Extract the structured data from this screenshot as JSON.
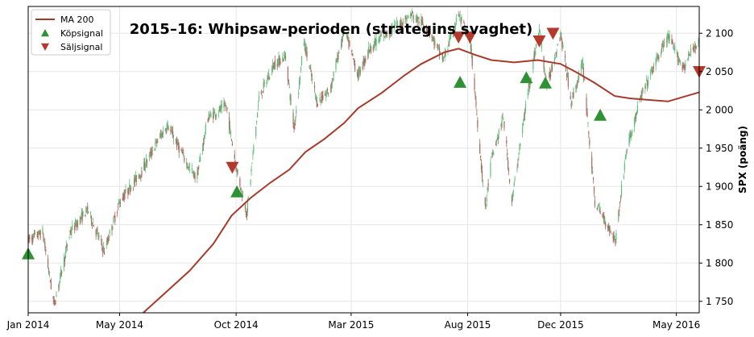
{
  "chart_data": {
    "type": "candlestick",
    "title": "2015–16: Whipsaw-perioden  (strategins svaghet)",
    "ylabel": "SPX  (poäng)",
    "xlabel": "",
    "xlim": [
      "2014-01-01",
      "2016-05-31"
    ],
    "ylim": [
      1735,
      2135
    ],
    "y_axis_position": "right",
    "grid": true,
    "legend_position": "top-left",
    "x_ticks": [
      {
        "date": "2014-01-01",
        "label": "Jan 2014"
      },
      {
        "date": "2014-05-01",
        "label": "May 2014"
      },
      {
        "date": "2014-10-01",
        "label": "Oct 2014"
      },
      {
        "date": "2015-03-01",
        "label": "Mar 2015"
      },
      {
        "date": "2015-08-01",
        "label": "Aug 2015"
      },
      {
        "date": "2015-12-01",
        "label": "Dec 2015"
      },
      {
        "date": "2016-05-01",
        "label": "May 2016"
      }
    ],
    "y_ticks": [
      {
        "value": 1750,
        "label": "1 750"
      },
      {
        "value": 1800,
        "label": "1 800"
      },
      {
        "value": 1850,
        "label": "1 850"
      },
      {
        "value": 1900,
        "label": "1 900"
      },
      {
        "value": 1950,
        "label": "1 950"
      },
      {
        "value": 2000,
        "label": "2 000"
      },
      {
        "value": 2050,
        "label": "2 050"
      },
      {
        "value": 2100,
        "label": "2 100"
      }
    ],
    "price_anchors": [
      [
        "2014-01-01",
        1830
      ],
      [
        "2014-01-20",
        1840
      ],
      [
        "2014-02-04",
        1745
      ],
      [
        "2014-02-25",
        1840
      ],
      [
        "2014-03-20",
        1870
      ],
      [
        "2014-04-11",
        1815
      ],
      [
        "2014-05-01",
        1880
      ],
      [
        "2014-05-30",
        1920
      ],
      [
        "2014-06-20",
        1960
      ],
      [
        "2014-07-03",
        1980
      ],
      [
        "2014-07-31",
        1925
      ],
      [
        "2014-08-10",
        1910
      ],
      [
        "2014-08-25",
        1990
      ],
      [
        "2014-09-18",
        2005
      ],
      [
        "2014-10-01",
        1925
      ],
      [
        "2014-10-15",
        1865
      ],
      [
        "2014-10-31",
        2015
      ],
      [
        "2014-11-20",
        2060
      ],
      [
        "2014-12-05",
        2070
      ],
      [
        "2014-12-16",
        1975
      ],
      [
        "2014-12-29",
        2090
      ],
      [
        "2015-01-15",
        2010
      ],
      [
        "2015-02-01",
        2025
      ],
      [
        "2015-02-20",
        2105
      ],
      [
        "2015-03-10",
        2045
      ],
      [
        "2015-03-25",
        2080
      ],
      [
        "2015-04-10",
        2095
      ],
      [
        "2015-05-20",
        2125
      ],
      [
        "2015-06-10",
        2105
      ],
      [
        "2015-06-30",
        2065
      ],
      [
        "2015-07-20",
        2125
      ],
      [
        "2015-08-05",
        2085
      ],
      [
        "2015-08-24",
        1870
      ],
      [
        "2015-09-01",
        1935
      ],
      [
        "2015-09-17",
        1990
      ],
      [
        "2015-09-28",
        1880
      ],
      [
        "2015-10-20",
        2030
      ],
      [
        "2015-11-03",
        2105
      ],
      [
        "2015-11-13",
        2030
      ],
      [
        "2015-12-01",
        2100
      ],
      [
        "2015-12-15",
        2010
      ],
      [
        "2015-12-30",
        2060
      ],
      [
        "2016-01-15",
        1880
      ],
      [
        "2016-02-11",
        1830
      ],
      [
        "2016-02-25",
        1945
      ],
      [
        "2016-03-15",
        2015
      ],
      [
        "2016-04-05",
        2065
      ],
      [
        "2016-04-20",
        2095
      ],
      [
        "2016-05-10",
        2055
      ],
      [
        "2016-05-31",
        2095
      ]
    ],
    "series": [
      {
        "name": "MA 200",
        "type": "line",
        "color": "#a73a2b",
        "points": [
          [
            "2014-06-01",
            1735
          ],
          [
            "2014-07-01",
            1762
          ],
          [
            "2014-08-01",
            1790
          ],
          [
            "2014-09-01",
            1825
          ],
          [
            "2014-09-25",
            1862
          ],
          [
            "2014-10-20",
            1885
          ],
          [
            "2014-11-15",
            1905
          ],
          [
            "2014-12-10",
            1922
          ],
          [
            "2014-12-31",
            1945
          ],
          [
            "2015-01-25",
            1962
          ],
          [
            "2015-02-20",
            1983
          ],
          [
            "2015-03-10",
            2002
          ],
          [
            "2015-04-10",
            2022
          ],
          [
            "2015-05-10",
            2045
          ],
          [
            "2015-06-01",
            2060
          ],
          [
            "2015-07-01",
            2075
          ],
          [
            "2015-07-20",
            2080
          ],
          [
            "2015-08-10",
            2072
          ],
          [
            "2015-09-01",
            2065
          ],
          [
            "2015-10-01",
            2062
          ],
          [
            "2015-11-01",
            2065
          ],
          [
            "2015-12-01",
            2060
          ],
          [
            "2015-12-20",
            2050
          ],
          [
            "2016-01-15",
            2035
          ],
          [
            "2016-02-10",
            2018
          ],
          [
            "2016-03-01",
            2015
          ],
          [
            "2016-03-25",
            2013
          ],
          [
            "2016-04-20",
            2011
          ],
          [
            "2016-05-31",
            2023
          ]
        ]
      },
      {
        "name": "Köpsignal",
        "type": "marker",
        "marker": "triangle-up",
        "color": "#2e9133",
        "points": [
          [
            "2014-01-01",
            1812
          ],
          [
            "2014-10-02",
            1893
          ],
          [
            "2015-07-22",
            2036
          ],
          [
            "2015-10-17",
            2042
          ],
          [
            "2015-11-11",
            2035
          ],
          [
            "2016-01-22",
            1993
          ]
        ]
      },
      {
        "name": "Säljsignal",
        "type": "marker",
        "marker": "triangle-down",
        "color": "#b3392b",
        "points": [
          [
            "2014-09-26",
            1925
          ],
          [
            "2015-07-20",
            2095
          ],
          [
            "2015-08-04",
            2095
          ],
          [
            "2015-11-03",
            2090
          ],
          [
            "2015-11-21",
            2100
          ],
          [
            "2016-05-31",
            2050
          ]
        ]
      }
    ],
    "candle_colors": {
      "up": "#5fbf7a",
      "down": "#a86a5e"
    }
  }
}
